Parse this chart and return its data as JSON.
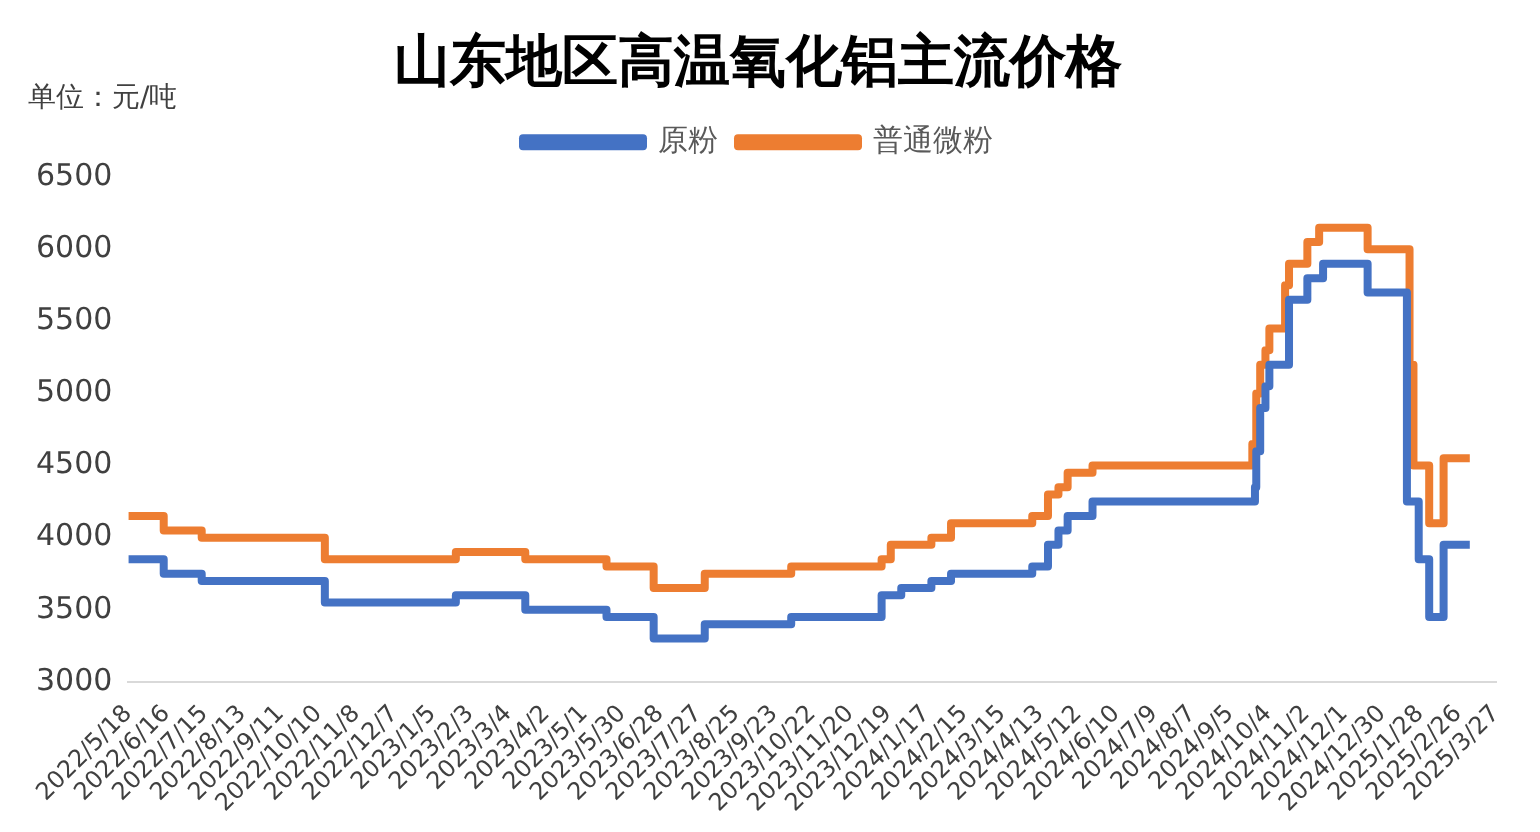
{
  "chart_data": {
    "type": "step",
    "title": "山东地区高温氧化铝主流价格",
    "ylabel": "单位：元/吨",
    "legend": "top",
    "xlim": [
      "2022-05-18",
      "2025-03-27"
    ],
    "xticks": [
      {
        "value": "2022-05-18",
        "label": "2022/5/18"
      },
      {
        "value": "2022-06-16",
        "label": "2022/6/16"
      },
      {
        "value": "2022-07-15",
        "label": "2022/7/15"
      },
      {
        "value": "2022-08-13",
        "label": "2022/8/13"
      },
      {
        "value": "2022-09-11",
        "label": "2022/9/11"
      },
      {
        "value": "2022-10-10",
        "label": "2022/10/10"
      },
      {
        "value": "2022-11-08",
        "label": "2022/11/8"
      },
      {
        "value": "2022-12-07",
        "label": "2022/12/7"
      },
      {
        "value": "2023-01-05",
        "label": "2023/1/5"
      },
      {
        "value": "2023-02-03",
        "label": "2023/2/3"
      },
      {
        "value": "2023-03-04",
        "label": "2023/3/4"
      },
      {
        "value": "2023-04-02",
        "label": "2023/4/2"
      },
      {
        "value": "2023-05-01",
        "label": "2023/5/1"
      },
      {
        "value": "2023-05-30",
        "label": "2023/5/30"
      },
      {
        "value": "2023-06-28",
        "label": "2023/6/28"
      },
      {
        "value": "2023-07-27",
        "label": "2023/7/27"
      },
      {
        "value": "2023-08-25",
        "label": "2023/8/25"
      },
      {
        "value": "2023-09-23",
        "label": "2023/9/23"
      },
      {
        "value": "2023-10-22",
        "label": "2023/10/22"
      },
      {
        "value": "2023-11-20",
        "label": "2023/11/20"
      },
      {
        "value": "2023-12-19",
        "label": "2023/12/19"
      },
      {
        "value": "2024-01-17",
        "label": "2024/1/17"
      },
      {
        "value": "2024-02-15",
        "label": "2024/2/15"
      },
      {
        "value": "2024-03-15",
        "label": "2024/3/15"
      },
      {
        "value": "2024-04-13",
        "label": "2024/4/13"
      },
      {
        "value": "2024-05-12",
        "label": "2024/5/12"
      },
      {
        "value": "2024-06-10",
        "label": "2024/6/10"
      },
      {
        "value": "2024-07-09",
        "label": "2024/7/9"
      },
      {
        "value": "2024-08-07",
        "label": "2024/8/7"
      },
      {
        "value": "2024-09-05",
        "label": "2024/9/5"
      },
      {
        "value": "2024-10-04",
        "label": "2024/10/4"
      },
      {
        "value": "2024-11-02",
        "label": "2024/11/2"
      },
      {
        "value": "2024-12-01",
        "label": "2024/12/1"
      },
      {
        "value": "2024-12-30",
        "label": "2024/12/30"
      },
      {
        "value": "2025-01-28",
        "label": "2025/1/28"
      },
      {
        "value": "2025-02-26",
        "label": "2025/2/26"
      },
      {
        "value": "2025-03-27",
        "label": "2025/3/27"
      }
    ],
    "ylim": [
      3000,
      6500
    ],
    "yticks": [
      3000,
      3500,
      4000,
      4500,
      5000,
      5500,
      6000,
      6500
    ],
    "series": [
      {
        "name": "原粉",
        "color": "#4472c4",
        "x": [
          "2022-05-18",
          "2022-06-14",
          "2022-07-13",
          "2022-10-15",
          "2023-01-23",
          "2023-03-17",
          "2023-05-18",
          "2023-06-23",
          "2023-08-01",
          "2023-10-06",
          "2023-12-14",
          "2023-12-29",
          "2024-01-21",
          "2024-02-05",
          "2024-04-07",
          "2024-04-19",
          "2024-04-27",
          "2024-05-04",
          "2024-05-23",
          "2024-09-24",
          "2024-09-25",
          "2024-09-28",
          "2024-10-02",
          "2024-10-05",
          "2024-10-20",
          "2024-11-03",
          "2024-11-15",
          "2024-12-19",
          "2025-01-18",
          "2025-01-27",
          "2025-02-04",
          "2025-02-15",
          "2025-03-07"
        ],
        "values": [
          3850,
          3750,
          3700,
          3550,
          3600,
          3500,
          3450,
          3300,
          3400,
          3450,
          3600,
          3650,
          3700,
          3750,
          3800,
          3950,
          4050,
          4150,
          4250,
          4350,
          4600,
          4900,
          5050,
          5200,
          5650,
          5800,
          5900,
          5700,
          4250,
          3850,
          3450,
          3950,
          3950
        ]
      },
      {
        "name": "普通微粉",
        "color": "#ed7d31",
        "x": [
          "2022-05-18",
          "2022-06-14",
          "2022-07-13",
          "2022-10-15",
          "2023-01-23",
          "2023-03-17",
          "2023-05-18",
          "2023-06-23",
          "2023-08-01",
          "2023-10-06",
          "2023-12-14",
          "2023-12-21",
          "2024-01-21",
          "2024-02-05",
          "2024-04-07",
          "2024-04-19",
          "2024-04-27",
          "2024-05-04",
          "2024-05-23",
          "2024-09-22",
          "2024-09-25",
          "2024-09-28",
          "2024-10-02",
          "2024-10-05",
          "2024-10-17",
          "2024-10-20",
          "2024-11-03",
          "2024-11-12",
          "2024-12-19",
          "2025-01-20",
          "2025-01-23",
          "2025-02-04",
          "2025-02-15",
          "2025-03-07"
        ],
        "values": [
          4150,
          4050,
          4000,
          3850,
          3900,
          3850,
          3800,
          3650,
          3750,
          3800,
          3850,
          3950,
          4000,
          4100,
          4150,
          4300,
          4350,
          4450,
          4500,
          4650,
          5000,
          5200,
          5300,
          5450,
          5750,
          5900,
          6050,
          6150,
          6000,
          5200,
          4500,
          4100,
          4550,
          4550
        ]
      }
    ]
  }
}
